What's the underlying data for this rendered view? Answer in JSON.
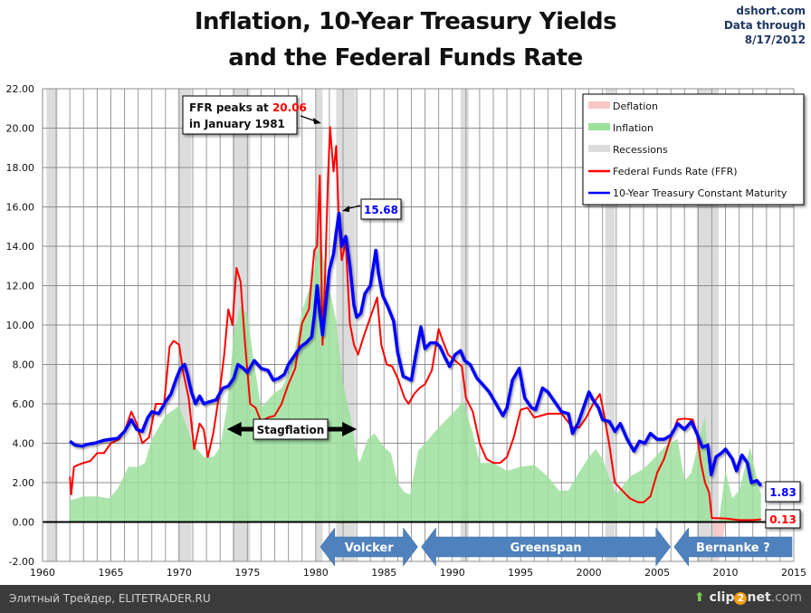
{
  "chart_data": {
    "type": "line",
    "title": "Inflation, 10-Year Treasury Yields and the Federal Funds Rate",
    "title_lines": [
      "Inflation, 10-Year Treasury Yields",
      "and the Federal Funds Rate"
    ],
    "source_lines": [
      "dshort.com",
      "Data through",
      "8/17/2012"
    ],
    "xlabel": "",
    "ylabel": "",
    "xlim": [
      1960,
      2015
    ],
    "ylim": [
      -2,
      22
    ],
    "x_ticks": [
      1960,
      1965,
      1970,
      1975,
      1980,
      1985,
      1990,
      1995,
      2000,
      2005,
      2010,
      2015
    ],
    "y_ticks": [
      -2,
      0,
      2,
      4,
      6,
      8,
      10,
      12,
      14,
      16,
      18,
      20,
      22
    ],
    "y_tick_labels": [
      "-2.00",
      "0.00",
      "2.00",
      "4.00",
      "6.00",
      "8.00",
      "10.00",
      "12.00",
      "14.00",
      "16.00",
      "18.00",
      "20.00",
      "22.00"
    ],
    "grid": true,
    "legend_position": "top-right",
    "legend": [
      {
        "label": "Deflation",
        "kind": "area",
        "color": "#f8c8c8"
      },
      {
        "label": "Inflation",
        "kind": "area",
        "color": "#9ce09c"
      },
      {
        "label": "Recessions",
        "kind": "area",
        "color": "#dcdcdc"
      },
      {
        "label": "Federal Funds Rate (FFR)",
        "kind": "line",
        "color": "#ff0000"
      },
      {
        "label": "10-Year Treasury Constant Maturity",
        "kind": "line",
        "color": "#0000ff"
      }
    ],
    "recessions": [
      [
        1960.3,
        1961.1
      ],
      [
        1969.9,
        1970.9
      ],
      [
        1973.9,
        1975.2
      ],
      [
        1980.0,
        1980.5
      ],
      [
        1981.5,
        1982.9
      ],
      [
        1990.6,
        1991.2
      ],
      [
        2001.2,
        2001.9
      ],
      [
        2007.9,
        2009.5
      ]
    ],
    "series": [
      {
        "name": "Federal Funds Rate (FFR)",
        "color": "#ff0000",
        "x": [
          1962.0,
          1962.1,
          1962.3,
          1962.6,
          1963.0,
          1963.5,
          1964.0,
          1964.5,
          1965.0,
          1965.6,
          1966.0,
          1966.5,
          1966.9,
          1967.3,
          1967.8,
          1968.3,
          1968.9,
          1969.3,
          1969.6,
          1970.0,
          1970.3,
          1970.7,
          1971.1,
          1971.5,
          1971.8,
          1972.1,
          1972.5,
          1973.0,
          1973.3,
          1973.6,
          1973.9,
          1974.2,
          1974.5,
          1974.8,
          1975.2,
          1975.6,
          1976.0,
          1976.5,
          1977.0,
          1977.5,
          1978.0,
          1978.5,
          1979.0,
          1979.5,
          1979.9,
          1980.1,
          1980.3,
          1980.5,
          1980.7,
          1980.9,
          1981.05,
          1981.3,
          1981.5,
          1981.7,
          1981.9,
          1982.2,
          1982.5,
          1982.8,
          1983.1,
          1983.5,
          1984.0,
          1984.5,
          1984.8,
          1985.2,
          1985.6,
          1986.0,
          1986.5,
          1986.8,
          1987.2,
          1987.6,
          1988.0,
          1988.5,
          1989.0,
          1989.3,
          1989.7,
          1990.2,
          1990.7,
          1991.0,
          1991.5,
          1992.0,
          1992.5,
          1993.0,
          1993.5,
          1994.0,
          1994.5,
          1995.0,
          1995.5,
          1996.0,
          1997.0,
          1998.0,
          1998.8,
          1999.3,
          1999.8,
          2000.3,
          2000.8,
          2001.1,
          2001.5,
          2001.9,
          2002.3,
          2003.0,
          2003.6,
          2004.0,
          2004.5,
          2005.0,
          2005.5,
          2006.0,
          2006.5,
          2007.0,
          2007.6,
          2007.9,
          2008.2,
          2008.5,
          2008.8,
          2009.0,
          2010.0,
          2011.0,
          2012.0,
          2012.6
        ],
        "values": [
          2.3,
          1.4,
          2.8,
          2.9,
          3.0,
          3.1,
          3.5,
          3.5,
          4.0,
          4.2,
          4.6,
          5.6,
          5.0,
          4.0,
          4.3,
          6.0,
          6.0,
          8.9,
          9.2,
          9.0,
          7.6,
          6.3,
          3.7,
          5.0,
          4.7,
          3.3,
          4.5,
          6.8,
          8.5,
          10.8,
          10.0,
          12.9,
          12.2,
          9.3,
          6.0,
          5.8,
          5.1,
          5.3,
          5.4,
          6.0,
          7.0,
          7.8,
          10.1,
          10.8,
          13.8,
          14.0,
          17.6,
          9.0,
          12.8,
          17.5,
          20.06,
          17.8,
          19.1,
          15.1,
          13.3,
          14.2,
          10.1,
          9.0,
          8.5,
          9.4,
          10.4,
          11.4,
          9.0,
          8.0,
          7.9,
          7.3,
          6.3,
          6.0,
          6.5,
          6.8,
          7.0,
          7.7,
          9.8,
          9.2,
          8.5,
          8.2,
          7.9,
          6.3,
          5.6,
          4.0,
          3.2,
          3.0,
          3.0,
          3.3,
          4.3,
          5.7,
          5.8,
          5.3,
          5.5,
          5.5,
          4.8,
          4.8,
          5.3,
          6.0,
          6.5,
          5.5,
          3.9,
          2.0,
          1.7,
          1.2,
          1.0,
          1.0,
          1.3,
          2.5,
          3.2,
          4.3,
          5.2,
          5.25,
          5.2,
          4.5,
          3.0,
          2.0,
          1.5,
          0.2,
          0.18,
          0.1,
          0.1,
          0.13
        ]
      },
      {
        "name": "10-Year Treasury Constant Maturity",
        "color": "#0000ff",
        "x": [
          1962.0,
          1962.4,
          1962.9,
          1963.3,
          1963.8,
          1964.5,
          1965.0,
          1965.5,
          1966.0,
          1966.5,
          1966.9,
          1967.3,
          1967.7,
          1968.0,
          1968.5,
          1969.0,
          1969.4,
          1969.8,
          1970.1,
          1970.4,
          1970.6,
          1970.9,
          1971.2,
          1971.5,
          1971.8,
          1972.2,
          1972.7,
          1973.2,
          1973.6,
          1974.0,
          1974.3,
          1974.7,
          1975.0,
          1975.5,
          1976.0,
          1976.5,
          1976.9,
          1977.3,
          1977.7,
          1978.0,
          1978.4,
          1978.9,
          1979.3,
          1979.7,
          1979.9,
          1980.1,
          1980.3,
          1980.5,
          1980.8,
          1981.0,
          1981.3,
          1981.5,
          1981.7,
          1981.9,
          1982.2,
          1982.5,
          1982.8,
          1983.0,
          1983.3,
          1983.6,
          1984.0,
          1984.4,
          1984.6,
          1984.9,
          1985.3,
          1985.7,
          1986.0,
          1986.4,
          1986.7,
          1987.0,
          1987.3,
          1987.7,
          1988.0,
          1988.4,
          1988.8,
          1989.1,
          1989.5,
          1989.8,
          1990.2,
          1990.6,
          1990.9,
          1991.3,
          1991.8,
          1992.2,
          1992.7,
          1993.2,
          1993.7,
          1994.0,
          1994.4,
          1994.9,
          1995.3,
          1995.8,
          1996.1,
          1996.6,
          1997.0,
          1997.5,
          1998.0,
          1998.5,
          1998.8,
          1999.2,
          1999.6,
          2000.0,
          2000.3,
          2000.7,
          2001.0,
          2001.5,
          2001.9,
          2002.3,
          2002.8,
          2003.3,
          2003.7,
          2004.1,
          2004.5,
          2005.0,
          2005.5,
          2006.0,
          2006.5,
          2007.0,
          2007.5,
          2007.9,
          2008.3,
          2008.7,
          2008.95,
          2009.3,
          2009.7,
          2010.0,
          2010.5,
          2010.8,
          2011.2,
          2011.6,
          2011.9,
          2012.3,
          2012.6
        ],
        "values": [
          4.1,
          3.9,
          3.85,
          3.95,
          4.0,
          4.15,
          4.2,
          4.25,
          4.6,
          5.2,
          4.7,
          4.6,
          5.3,
          5.6,
          5.5,
          6.1,
          6.5,
          7.3,
          7.8,
          8.0,
          7.5,
          6.6,
          6.0,
          6.4,
          6.0,
          6.1,
          6.2,
          6.8,
          6.9,
          7.3,
          8.0,
          7.8,
          7.6,
          8.2,
          7.8,
          7.7,
          7.2,
          7.3,
          7.5,
          8.0,
          8.4,
          8.9,
          9.1,
          9.4,
          10.5,
          12.0,
          10.6,
          9.5,
          11.5,
          12.8,
          13.6,
          14.7,
          15.68,
          14.0,
          14.5,
          13.0,
          11.0,
          10.4,
          10.6,
          11.6,
          12.0,
          13.8,
          12.6,
          11.5,
          10.9,
          10.2,
          8.6,
          7.4,
          7.3,
          7.2,
          8.4,
          9.9,
          8.8,
          9.1,
          9.1,
          8.9,
          8.3,
          7.9,
          8.5,
          8.7,
          8.2,
          8.0,
          7.3,
          7.0,
          6.6,
          6.0,
          5.4,
          5.8,
          7.2,
          7.8,
          6.3,
          5.8,
          5.7,
          6.8,
          6.6,
          6.1,
          5.6,
          5.5,
          4.5,
          5.0,
          5.8,
          6.6,
          6.2,
          5.8,
          5.2,
          5.1,
          4.6,
          5.0,
          4.2,
          3.6,
          4.1,
          4.0,
          4.5,
          4.2,
          4.2,
          4.4,
          5.0,
          4.7,
          5.1,
          4.5,
          3.8,
          3.9,
          2.4,
          3.3,
          3.5,
          3.7,
          3.2,
          2.6,
          3.4,
          3.0,
          2.0,
          2.1,
          1.83
        ]
      },
      {
        "name": "Inflation",
        "kind": "area",
        "color": "#9ce09c",
        "x": [
          1962.0,
          1963.0,
          1964.0,
          1964.9,
          1965.5,
          1966.3,
          1967.0,
          1967.5,
          1968.0,
          1969.0,
          1970.0,
          1971.0,
          1971.8,
          1972.5,
          1973.0,
          1973.5,
          1974.0,
          1974.5,
          1975.0,
          1975.5,
          1976.0,
          1976.9,
          1977.5,
          1978.0,
          1978.5,
          1979.0,
          1979.5,
          1980.0,
          1980.3,
          1980.8,
          1981.5,
          1982.0,
          1982.5,
          1982.9,
          1983.2,
          1983.8,
          1984.3,
          1985.0,
          1985.5,
          1986.0,
          1986.5,
          1986.9,
          1987.5,
          1988.0,
          1989.0,
          1990.0,
          1990.8,
          1991.5,
          1992.0,
          1993.0,
          1994.0,
          1995.0,
          1996.0,
          1997.0,
          1997.8,
          1998.5,
          1999.0,
          2000.0,
          2000.5,
          2001.0,
          2001.5,
          2002.0,
          2003.0,
          2004.0,
          2005.0,
          2005.8,
          2006.5,
          2007.0,
          2007.5,
          2008.0,
          2008.5,
          2009.0,
          2009.5,
          2010.0,
          2010.5,
          2011.0,
          2011.8,
          2012.3,
          2012.6
        ],
        "values": [
          1.1,
          1.3,
          1.3,
          1.2,
          1.7,
          2.8,
          2.8,
          3.0,
          4.2,
          5.4,
          5.9,
          4.0,
          3.3,
          3.3,
          3.8,
          5.8,
          9.5,
          11.0,
          10.5,
          8.0,
          5.8,
          6.5,
          6.8,
          7.5,
          8.8,
          10.7,
          11.8,
          13.2,
          14.5,
          12.5,
          10.2,
          7.0,
          5.5,
          3.8,
          3.0,
          4.2,
          4.5,
          3.8,
          3.5,
          2.0,
          1.5,
          1.4,
          3.6,
          4.0,
          4.8,
          5.5,
          6.1,
          4.5,
          3.0,
          3.0,
          2.6,
          2.8,
          2.9,
          2.3,
          1.6,
          1.6,
          2.2,
          3.3,
          3.7,
          3.2,
          2.2,
          1.4,
          2.3,
          2.7,
          3.4,
          4.0,
          4.2,
          2.1,
          2.5,
          4.0,
          5.4,
          0.0,
          -2.0,
          2.6,
          1.2,
          1.6,
          3.8,
          2.2,
          1.4
        ]
      }
    ],
    "annotations": [
      {
        "label": "FFR peaks at",
        "value": "20.06",
        "label2": "in January 1981",
        "x": 1981.05,
        "y": 20.06
      },
      {
        "label": "15.68",
        "x": 1981.7,
        "y": 15.68,
        "color": "#0000ff"
      },
      {
        "label": "Stagflation",
        "x_range": [
          1973.5,
          1983.0
        ],
        "y": 4.6
      },
      {
        "label": "1.83",
        "x": 2012.6,
        "y": 1.83,
        "color": "#0000ff"
      },
      {
        "label": "0.13",
        "x": 2012.6,
        "y": 0.13,
        "color": "#ff0000"
      }
    ],
    "eras": [
      {
        "label": "Volcker",
        "x_range": [
          1980.2,
          1987.6
        ]
      },
      {
        "label": "Greenspan",
        "x_range": [
          1987.6,
          2006.1
        ]
      },
      {
        "label": "Bernanke  ?",
        "x_range": [
          2006.1,
          2015.0
        ]
      }
    ]
  },
  "footer": {
    "left_text": "Элитный Трейдер, ELITETRADER.RU",
    "right_brand_pre": "clip",
    "right_brand_num": "2",
    "right_brand_post": "net",
    "right_brand_tld": ".com"
  }
}
